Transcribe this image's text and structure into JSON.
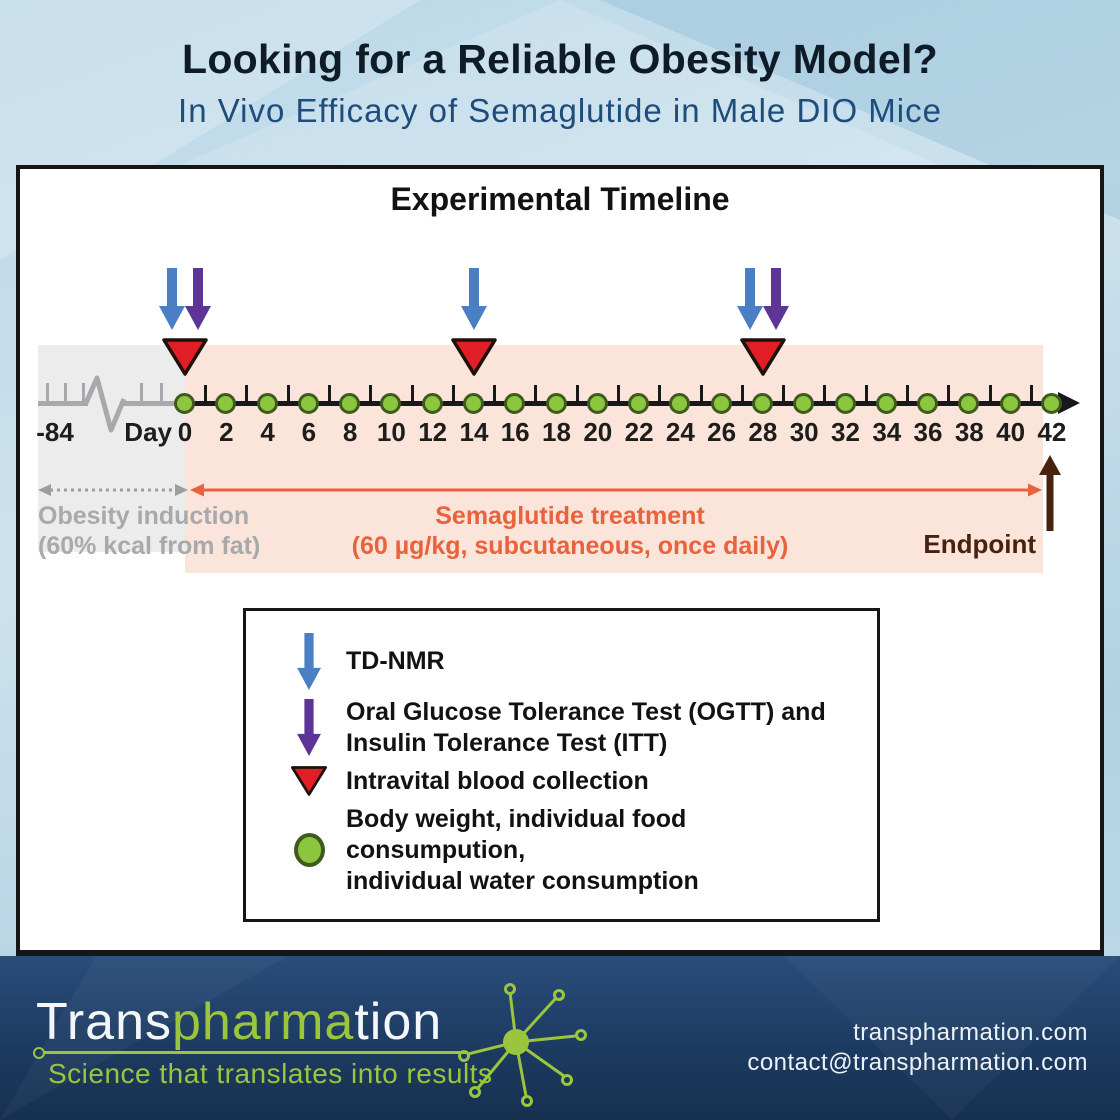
{
  "header": {
    "title": "Looking for a Reliable Obesity Model?",
    "subtitle": "In Vivo Efficacy of Semaglutide in Male DIO Mice"
  },
  "panel": {
    "title": "Experimental Timeline"
  },
  "timeline": {
    "break_label": "-84",
    "day_prefix": "Day",
    "day_labels": [
      0,
      2,
      4,
      6,
      8,
      10,
      12,
      14,
      16,
      18,
      20,
      22,
      24,
      26,
      28,
      30,
      32,
      34,
      36,
      38,
      40,
      42
    ],
    "events": [
      {
        "day": 0,
        "tdnmr": true,
        "ogtt_itt": true,
        "blood": true
      },
      {
        "day": 14,
        "tdnmr": true,
        "ogtt_itt": false,
        "blood": true
      },
      {
        "day": 28,
        "tdnmr": true,
        "ogtt_itt": true,
        "blood": true
      }
    ],
    "phases": [
      {
        "name": "obesity-induction",
        "line1": "Obesity induction",
        "line2": "(60% kcal from fat)"
      },
      {
        "name": "semaglutide-treatment",
        "line1": "Semaglutide treatment",
        "line2": "(60 µg/kg, subcutaneous, once daily)"
      }
    ],
    "endpoint_label": "Endpoint"
  },
  "legend": {
    "items": [
      {
        "icon": "tdnmr-arrow-icon",
        "lines": [
          "TD-NMR"
        ]
      },
      {
        "icon": "ogtt-itt-arrow-icon",
        "lines": [
          "Oral Glucose Tolerance Test (OGTT) and",
          "Insulin Tolerance Test (ITT)"
        ]
      },
      {
        "icon": "blood-collection-triangle-icon",
        "lines": [
          "Intravital blood collection"
        ]
      },
      {
        "icon": "daily-measure-circle-icon",
        "lines": [
          "Body weight, individual food consumpution,",
          "individual water consumption"
        ]
      }
    ]
  },
  "footer": {
    "logo_part1": "Trans",
    "logo_part2": "pharma",
    "logo_part3": "tion",
    "tagline": "Science that translates into results",
    "website": "transpharmation.com",
    "email": "contact@transpharmation.com"
  },
  "colors": {
    "tdnmr_blue": "#4a7fc4",
    "ogtt_purple": "#5d3597",
    "blood_red": "#e11e26",
    "marker_green": "#8cc63e",
    "marker_green_border": "#3f5a1f",
    "treatment_orange": "#e8623d",
    "induction_gray": "#a7a9ac",
    "endpoint_brown": "#48220f",
    "brand_green": "#9bc53d",
    "footer_navy": "#1d3b62"
  }
}
